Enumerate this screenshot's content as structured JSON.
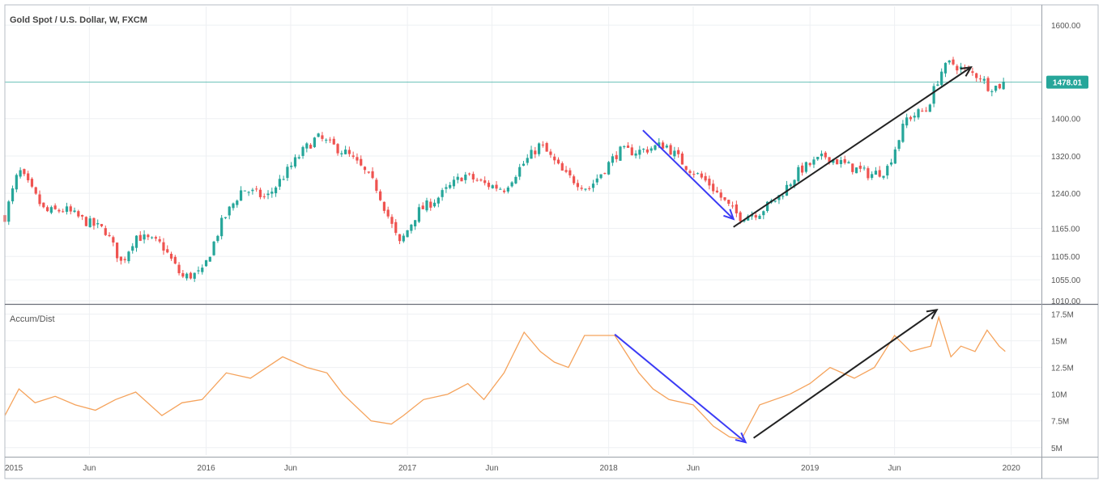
{
  "chart_data": [
    {
      "type": "candlestick",
      "title": "Gold Spot / U.S. Dollar, W, FXCM",
      "price_tag": "1478.01",
      "current_price": 1478,
      "y_ticks": [
        "1600.00",
        "1400.00",
        "1320.00",
        "1240.00",
        "1165.00",
        "1105.00",
        "1055.00",
        "1010.00"
      ],
      "y_tick_values": [
        1600,
        1400,
        1320,
        1240,
        1165,
        1105,
        1055,
        1010
      ],
      "ylim": [
        1005,
        1640
      ],
      "xlim": [
        2015.0,
        2020.15
      ],
      "x_ticks": [
        "2015",
        "Jun",
        "2016",
        "Jun",
        "2017",
        "Jun",
        "2018",
        "Jun",
        "2019",
        "Jun",
        "2020"
      ],
      "x_tick_values": [
        2015.0,
        2015.42,
        2016.0,
        2016.42,
        2017.0,
        2017.42,
        2018.0,
        2018.42,
        2019.0,
        2019.42,
        2020.0
      ],
      "close_path": [
        [
          2015.0,
          1190
        ],
        [
          2015.07,
          1290
        ],
        [
          2015.2,
          1200
        ],
        [
          2015.3,
          1205
        ],
        [
          2015.4,
          1180
        ],
        [
          2015.5,
          1160
        ],
        [
          2015.58,
          1090
        ],
        [
          2015.65,
          1150
        ],
        [
          2015.78,
          1130
        ],
        [
          2015.88,
          1060
        ],
        [
          2015.98,
          1070
        ],
        [
          2016.08,
          1180
        ],
        [
          2016.18,
          1250
        ],
        [
          2016.3,
          1230
        ],
        [
          2016.48,
          1330
        ],
        [
          2016.55,
          1360
        ],
        [
          2016.7,
          1325
        ],
        [
          2016.78,
          1290
        ],
        [
          2016.85,
          1250
        ],
        [
          2016.96,
          1130
        ],
        [
          2017.05,
          1200
        ],
        [
          2017.15,
          1230
        ],
        [
          2017.28,
          1280
        ],
        [
          2017.38,
          1260
        ],
        [
          2017.48,
          1250
        ],
        [
          2017.55,
          1290
        ],
        [
          2017.66,
          1345
        ],
        [
          2017.78,
          1280
        ],
        [
          2017.9,
          1250
        ],
        [
          2018.05,
          1330
        ],
        [
          2018.15,
          1330
        ],
        [
          2018.28,
          1345
        ],
        [
          2018.38,
          1300
        ],
        [
          2018.5,
          1260
        ],
        [
          2018.6,
          1210
        ],
        [
          2018.65,
          1190
        ],
        [
          2018.75,
          1200
        ],
        [
          2018.85,
          1235
        ],
        [
          2018.95,
          1290
        ],
        [
          2019.08,
          1320
        ],
        [
          2019.18,
          1300
        ],
        [
          2019.3,
          1280
        ],
        [
          2019.38,
          1290
        ],
        [
          2019.48,
          1400
        ],
        [
          2019.58,
          1420
        ],
        [
          2019.65,
          1500
        ],
        [
          2019.7,
          1520
        ],
        [
          2019.78,
          1500
        ],
        [
          2019.85,
          1490
        ],
        [
          2019.88,
          1470
        ],
        [
          2019.93,
          1468
        ],
        [
          2019.97,
          1478
        ]
      ]
    },
    {
      "type": "line",
      "title": "Accum/Dist",
      "y_ticks": [
        "17.5M",
        "15M",
        "12.5M",
        "10M",
        "7.5M",
        "5M"
      ],
      "y_tick_values": [
        17.5,
        15,
        12.5,
        10,
        7.5,
        5
      ],
      "ylim": [
        4.3,
        18.3
      ],
      "color": "#f5a35c",
      "x": [
        2015.0,
        2015.07,
        2015.15,
        2015.25,
        2015.35,
        2015.45,
        2015.55,
        2015.65,
        2015.78,
        2015.88,
        2015.98,
        2016.1,
        2016.22,
        2016.38,
        2016.5,
        2016.6,
        2016.68,
        2016.82,
        2016.92,
        2016.98,
        2017.08,
        2017.2,
        2017.3,
        2017.38,
        2017.48,
        2017.58,
        2017.66,
        2017.73,
        2017.8,
        2017.88,
        2018.03,
        2018.15,
        2018.22,
        2018.3,
        2018.42,
        2018.52,
        2018.6,
        2018.66,
        2018.75,
        2018.9,
        2019.0,
        2019.1,
        2019.22,
        2019.32,
        2019.42,
        2019.5,
        2019.6,
        2019.64,
        2019.7,
        2019.75,
        2019.82,
        2019.88,
        2019.94,
        2019.97
      ],
      "values": [
        8.0,
        10.5,
        9.2,
        9.8,
        9.0,
        8.5,
        9.5,
        10.2,
        8.0,
        9.2,
        9.5,
        12.0,
        11.5,
        13.5,
        12.5,
        12.0,
        10.0,
        7.5,
        7.2,
        8.0,
        9.5,
        10.0,
        11.0,
        9.5,
        12.0,
        15.8,
        14.0,
        13.0,
        12.5,
        15.5,
        15.5,
        12.0,
        10.5,
        9.5,
        9.0,
        7.0,
        6.0,
        5.8,
        9.0,
        10.0,
        11.0,
        12.5,
        11.5,
        12.5,
        15.5,
        14.0,
        14.5,
        17.2,
        13.5,
        14.5,
        14.0,
        16.0,
        14.5,
        14.0
      ]
    }
  ],
  "annotations": [
    {
      "panel": "price",
      "color": "#3b3bf5",
      "from": [
        2018.17,
        1375
      ],
      "to": [
        2018.62,
        1185
      ]
    },
    {
      "panel": "price",
      "color": "#222222",
      "from": [
        2018.62,
        1168
      ],
      "to": [
        2019.8,
        1510
      ]
    },
    {
      "panel": "indicator",
      "color": "#3b3bf5",
      "from": [
        2018.03,
        15.6
      ],
      "to": [
        2018.68,
        5.5
      ]
    },
    {
      "panel": "indicator",
      "color": "#222222",
      "from": [
        2018.72,
        5.9
      ],
      "to": [
        2019.63,
        17.9
      ]
    }
  ]
}
